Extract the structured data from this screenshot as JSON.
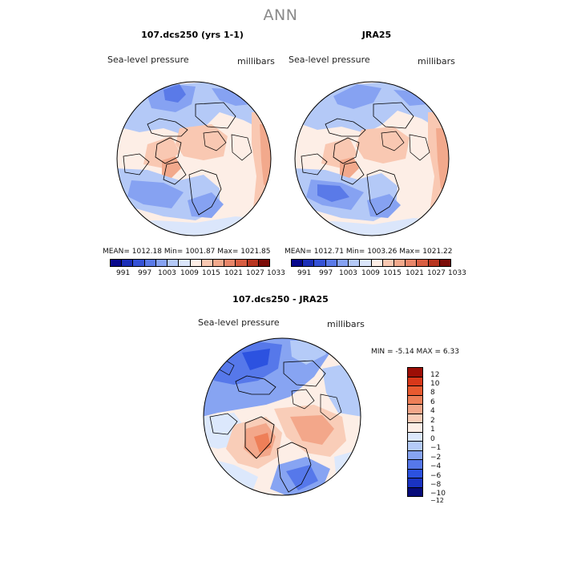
{
  "figure": {
    "title": "ANN",
    "colors": {
      "abs_levels": [
        "#08088c",
        "#1c2fb8",
        "#3552d6",
        "#5a7ae8",
        "#86a2f2",
        "#b4c9f7",
        "#dbe6fb",
        "#fdeee6",
        "#f9c8b2",
        "#f2a98c",
        "#e8866a",
        "#d85e42",
        "#b83520",
        "#7c0c08"
      ],
      "diff_levels": [
        "#070b7a",
        "#1a33c2",
        "#2c52e0",
        "#5678ea",
        "#87a4f2",
        "#b5cbf8",
        "#dce8fc",
        "#fdeee6",
        "#f9cdb8",
        "#f3a78a",
        "#ee7f58",
        "#e85a30",
        "#d8381a",
        "#9c0e06"
      ],
      "coastline": "#000000"
    }
  },
  "panels": [
    {
      "title": "107.dcs250 (yrs 1-1)",
      "left_label": "Sea-level pressure",
      "right_label": "millibars",
      "stats_text": "MEAN= 1012.18    Min= 1001.87    Max= 1021.85",
      "colorbar_ticks": [
        "991",
        "997",
        "1003",
        "1009",
        "1015",
        "1021",
        "1027",
        "1033"
      ]
    },
    {
      "title": "JRA25",
      "left_label": "Sea-level pressure",
      "right_label": "millibars",
      "stats_text": "MEAN= 1012.71    Min= 1003.26    Max= 1021.22",
      "colorbar_ticks": [
        "991",
        "997",
        "1003",
        "1009",
        "1015",
        "1021",
        "1027",
        "1033"
      ]
    },
    {
      "title": "107.dcs250 - JRA25",
      "left_label": "Sea-level pressure",
      "right_label": "millibars",
      "stats_text": "MIN =   -5.14  MAX =    6.33",
      "colorbar_ticks": [
        "12",
        "10",
        "8",
        "6",
        "4",
        "2",
        "1",
        "0",
        "−1",
        "−2",
        "−4",
        "−6",
        "−8",
        "−10",
        "−12"
      ]
    }
  ]
}
